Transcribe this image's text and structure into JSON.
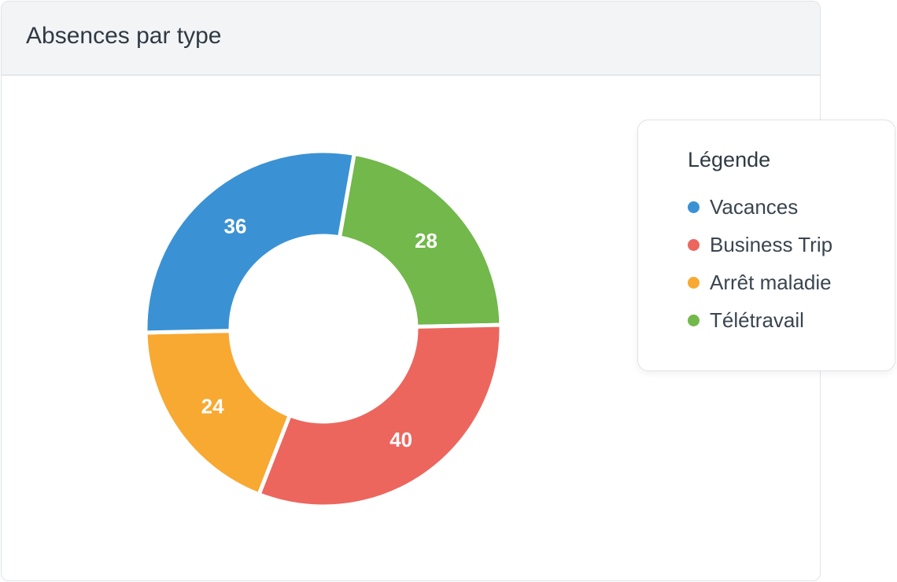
{
  "card": {
    "title": "Absences par type"
  },
  "legend": {
    "title": "Légende",
    "items": [
      {
        "label": "Vacances",
        "color": "#3a92d4"
      },
      {
        "label": "Business Trip",
        "color": "#ec665e"
      },
      {
        "label": "Arrêt maladie",
        "color": "#f8a932"
      },
      {
        "label": "Télétravail",
        "color": "#72b84b"
      }
    ]
  },
  "chart_data": {
    "type": "pie",
    "donut": true,
    "title": "Absences par type",
    "legend_title": "Légende",
    "legend_position": "right",
    "slices": [
      {
        "label": "Télétravail",
        "value": 28,
        "color": "#72b84b"
      },
      {
        "label": "Business Trip",
        "value": 40,
        "color": "#ec665e"
      },
      {
        "label": "Arrêt maladie",
        "value": 24,
        "color": "#f8a932"
      },
      {
        "label": "Vacances",
        "value": 36,
        "color": "#3a92d4"
      }
    ]
  }
}
